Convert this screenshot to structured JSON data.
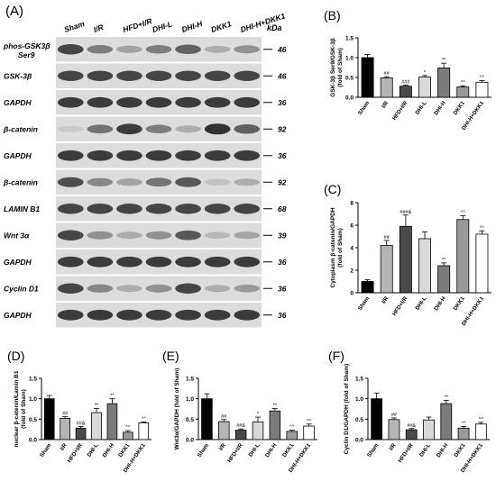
{
  "figure": {
    "panel_A_letter": "(A)",
    "lanes": [
      "Sham",
      "I/R",
      "HFD+I/R",
      "DHI-L",
      "DHI-H",
      "DKK1",
      "DHI-H+DKK1"
    ],
    "kda_header": "kDa",
    "blots": [
      {
        "label": "phos-GSK3β Ser9",
        "kda": "46",
        "intensity": [
          0.85,
          0.55,
          0.35,
          0.55,
          0.7,
          0.3,
          0.45
        ]
      },
      {
        "label": "GSK-3β",
        "kda": "46",
        "intensity": [
          0.85,
          0.85,
          0.85,
          0.85,
          0.85,
          0.85,
          0.85
        ]
      },
      {
        "label": "GAPDH",
        "kda": "36",
        "intensity": [
          0.9,
          0.9,
          0.9,
          0.9,
          0.9,
          0.9,
          0.9
        ]
      },
      {
        "label": "β-catenin",
        "kda": "92",
        "intensity": [
          0.15,
          0.6,
          0.9,
          0.55,
          0.3,
          0.95,
          0.7
        ]
      },
      {
        "label": "GAPDH",
        "kda": "36",
        "intensity": [
          0.9,
          0.9,
          0.9,
          0.9,
          0.9,
          0.9,
          0.9
        ]
      },
      {
        "label": "β-catenin",
        "kda": "92",
        "intensity": [
          0.8,
          0.5,
          0.35,
          0.6,
          0.75,
          0.2,
          0.3
        ]
      },
      {
        "label": "LAMIN B1",
        "kda": "68",
        "intensity": [
          0.85,
          0.85,
          0.85,
          0.85,
          0.85,
          0.85,
          0.85
        ]
      },
      {
        "label": "Wnt 3α",
        "kda": "39",
        "intensity": [
          0.85,
          0.45,
          0.3,
          0.45,
          0.75,
          0.25,
          0.35
        ]
      },
      {
        "label": "GAPDH",
        "kda": "36",
        "intensity": [
          0.9,
          0.9,
          0.9,
          0.9,
          0.9,
          0.9,
          0.9
        ]
      },
      {
        "label": "Cyclin D1",
        "kda": "36",
        "intensity": [
          0.85,
          0.5,
          0.3,
          0.45,
          0.85,
          0.3,
          0.4
        ]
      },
      {
        "label": "GAPDH",
        "kda": "36",
        "intensity": [
          0.9,
          0.9,
          0.9,
          0.9,
          0.9,
          0.9,
          0.9
        ]
      }
    ]
  },
  "chart_data": [
    {
      "panel": "(B)",
      "type": "bar",
      "categories": [
        "Sham",
        "I/R",
        "HFD+I/R",
        "DHI-L",
        "DHI-H",
        "DKK1",
        "DHI-H+DKK1"
      ],
      "values": [
        1.0,
        0.49,
        0.28,
        0.51,
        0.74,
        0.26,
        0.38
      ],
      "errors": [
        0.08,
        0.03,
        0.03,
        0.04,
        0.12,
        0.03,
        0.04
      ],
      "annotations": [
        "",
        "##",
        "###",
        "*",
        "**",
        "^^",
        "^^"
      ],
      "ylabel_line1": "GSK-3β Ser9/GSK-3β",
      "ylabel_line2": "(fold of Sham)",
      "ylim": [
        0,
        1.5
      ],
      "yticks": [
        0.0,
        0.5,
        1.0,
        1.5
      ],
      "ytick_labels": [
        "0.0",
        "0.5",
        "1.0",
        "1.5"
      ]
    },
    {
      "panel": "(C)",
      "type": "bar",
      "categories": [
        "Sham",
        "I/R",
        "HFD+I/R",
        "DHI-L",
        "DHI-H",
        "DKK1",
        "DHI-H+DKK1"
      ],
      "values": [
        1.0,
        4.2,
        5.9,
        4.8,
        2.4,
        6.5,
        5.2
      ],
      "errors": [
        0.15,
        0.45,
        1.0,
        0.6,
        0.25,
        0.35,
        0.3
      ],
      "annotations": [
        "",
        "##",
        "###&",
        "",
        "**",
        "^^",
        "^^"
      ],
      "ylabel_line1": "Cytoplasm β-catenin/GAPDH",
      "ylabel_line2": "(fold of Sham)",
      "ylim": [
        0,
        8
      ],
      "yticks": [
        0,
        2,
        4,
        6,
        8
      ],
      "ytick_labels": [
        "0",
        "2",
        "4",
        "6",
        "8"
      ]
    },
    {
      "panel": "(D)",
      "type": "bar",
      "categories": [
        "Sham",
        "I/R",
        "HFD+I/R",
        "DHI-L",
        "DHI-H",
        "DKK1",
        "DHI-H+DKK1"
      ],
      "values": [
        1.0,
        0.52,
        0.28,
        0.66,
        0.88,
        0.18,
        0.41
      ],
      "errors": [
        0.08,
        0.04,
        0.04,
        0.1,
        0.12,
        0.04,
        0.02
      ],
      "annotations": [
        "",
        "##",
        "##&",
        "**",
        "**",
        "^^",
        "^^"
      ],
      "ylabel_line1": "nuclear β-catenin/Lamin B1",
      "ylabel_line2": "(fold of Sham)",
      "ylim": [
        0,
        1.5
      ],
      "yticks": [
        0.0,
        0.5,
        1.0,
        1.5
      ],
      "ytick_labels": [
        "0.0",
        "0.5",
        "1.0",
        "1.5"
      ]
    },
    {
      "panel": "(E)",
      "type": "bar",
      "categories": [
        "Sham",
        "I/R",
        "HFD+I/R",
        "DHI-L",
        "DHI-H",
        "DKK1",
        "DHI-H+DKK1"
      ],
      "values": [
        1.0,
        0.44,
        0.23,
        0.43,
        0.7,
        0.2,
        0.33
      ],
      "errors": [
        0.12,
        0.05,
        0.03,
        0.12,
        0.06,
        0.03,
        0.05
      ],
      "annotations": [
        "",
        "##",
        "##&",
        "*",
        "**",
        "^^",
        "^^"
      ],
      "ylabel_line1": "Wnt3α/GAPDH (fold of Sham)",
      "ylabel_line2": "",
      "ylim": [
        0,
        1.5
      ],
      "yticks": [
        0.0,
        0.5,
        1.0,
        1.5
      ],
      "ytick_labels": [
        "0.0",
        "0.5",
        "1.0",
        "1.5"
      ]
    },
    {
      "panel": "(F)",
      "type": "bar",
      "categories": [
        "Sham",
        "I/R",
        "HFD+I/R",
        "DHI-L",
        "DHI-H",
        "DKK1",
        "DHI-H+DKK1"
      ],
      "values": [
        1.0,
        0.49,
        0.24,
        0.48,
        0.88,
        0.28,
        0.38
      ],
      "errors": [
        0.14,
        0.04,
        0.03,
        0.07,
        0.08,
        0.04,
        0.04
      ],
      "annotations": [
        "",
        "##",
        "##&",
        "",
        "**",
        "^^",
        "^^"
      ],
      "ylabel_line1": "Cyclin D1/GAPDH (fold of Sham)",
      "ylabel_line2": "",
      "ylim": [
        0,
        1.5
      ],
      "yticks": [
        0.0,
        0.5,
        1.0,
        1.5
      ],
      "ytick_labels": [
        "0.0",
        "0.5",
        "1.0",
        "1.5"
      ]
    }
  ],
  "bar_colors": [
    "#000000",
    "#b5b5b5",
    "#4a4a4a",
    "#d8d8d8",
    "#7b7b7b",
    "#9a9a9a",
    "#ffffff"
  ]
}
